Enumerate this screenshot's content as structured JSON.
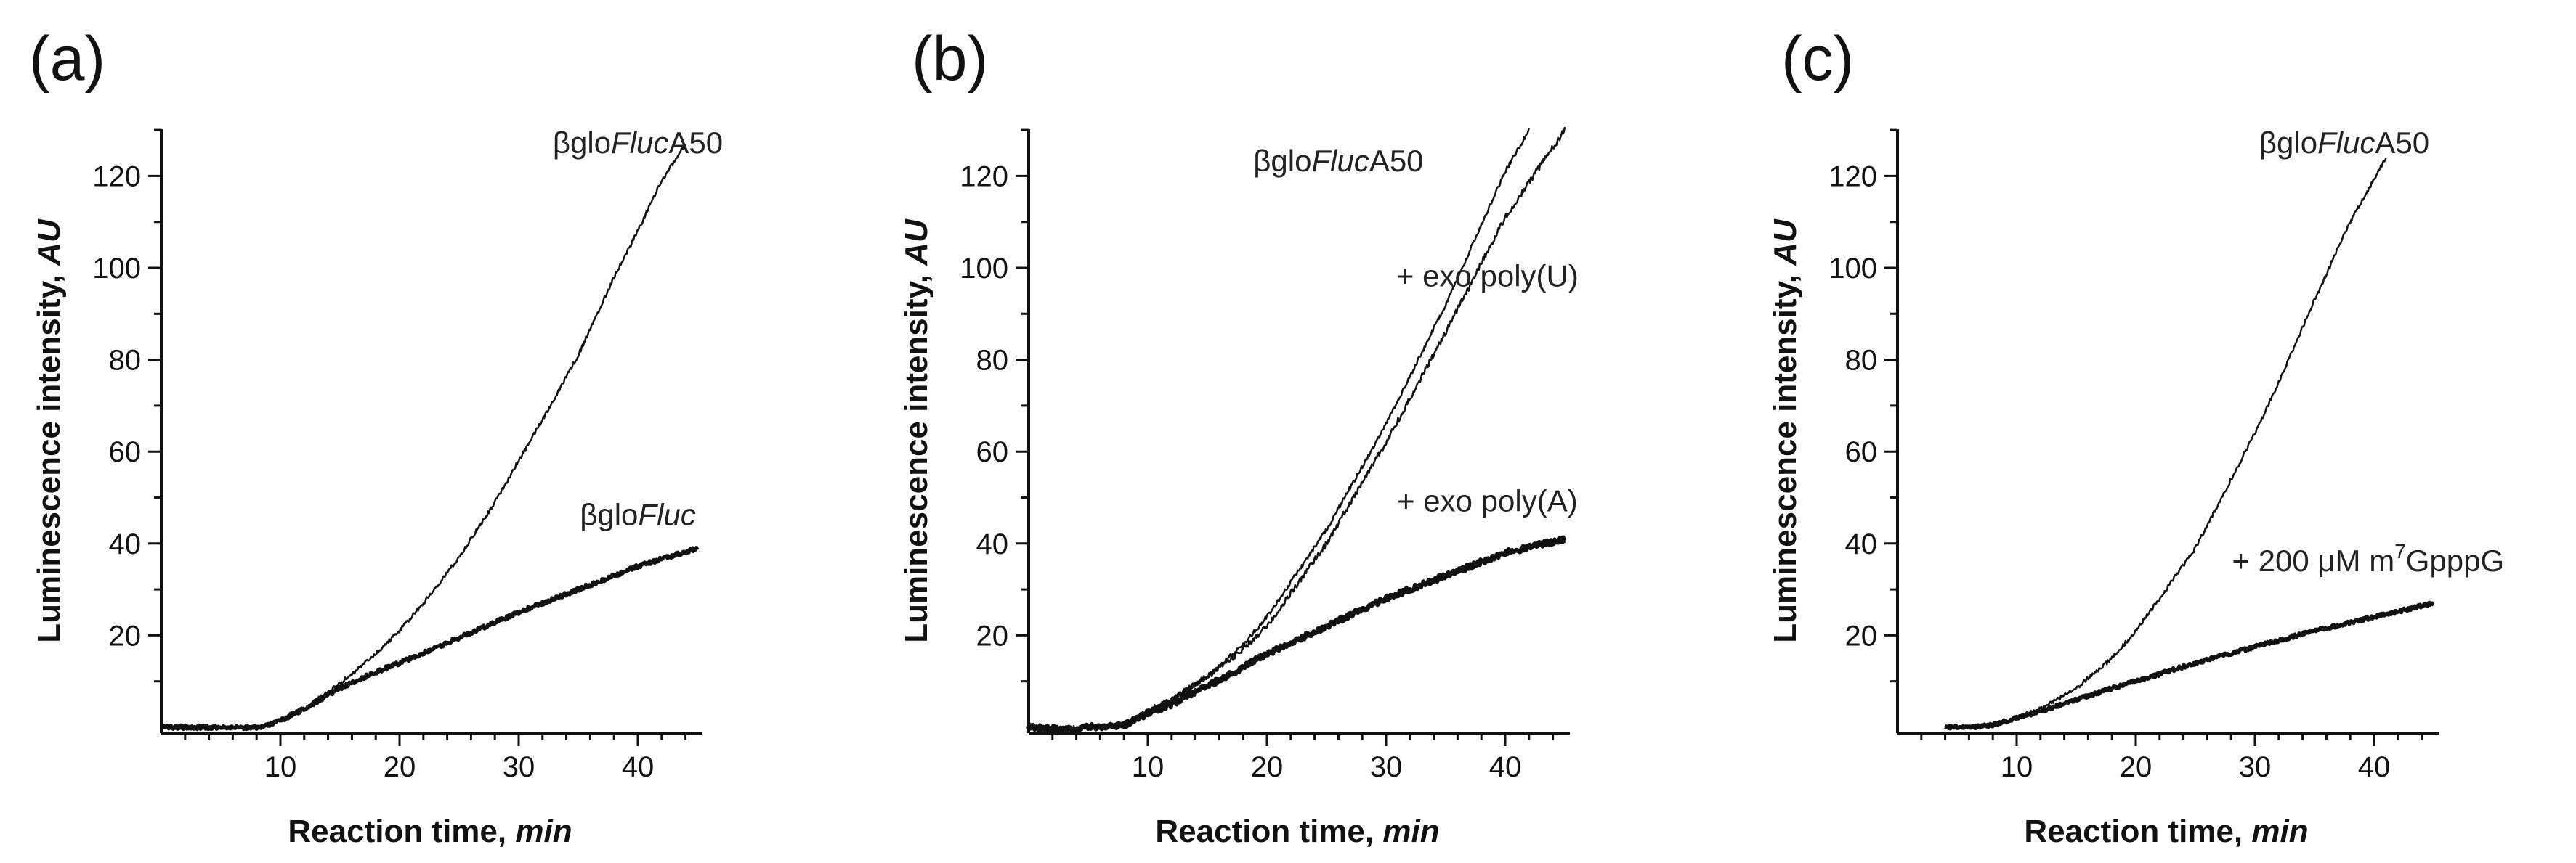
{
  "chart_data": [
    {
      "type": "line",
      "panel_label": "(a)",
      "xlabel_main": "Reaction time, ",
      "xlabel_unit": "min",
      "ylabel_main": "Luminescence intensity, ",
      "ylabel_unit": "AU",
      "xlim": [
        0,
        45
      ],
      "ylim": [
        0,
        130
      ],
      "xticks": [
        10,
        20,
        30,
        40
      ],
      "yticks": [
        20,
        40,
        60,
        80,
        100,
        120
      ],
      "series": [
        {
          "label_prefix": "βglo",
          "label_italic": "Fluc",
          "label_suffix": "A50",
          "label_at": [
            40,
            125
          ],
          "stroke": 2.5,
          "noise": 0.9,
          "x": [
            0,
            5,
            8,
            9,
            10,
            12,
            15,
            18,
            20,
            22,
            25,
            28,
            30,
            32,
            35,
            38,
            40,
            42,
            44
          ],
          "y": [
            0,
            0,
            0,
            0.5,
            1.5,
            4,
            9.5,
            16,
            21,
            27,
            37,
            49,
            58,
            67,
            81,
            98,
            108,
            119,
            127
          ]
        },
        {
          "label_prefix": "βglo",
          "label_italic": "Fluc",
          "label_suffix": "",
          "label_at": [
            40,
            44
          ],
          "stroke": 5,
          "noise": 0.9,
          "x": [
            0,
            5,
            8,
            9,
            10,
            12,
            15,
            18,
            20,
            25,
            30,
            35,
            40,
            45
          ],
          "y": [
            0,
            0,
            0,
            0.5,
            1.5,
            4,
            8.5,
            12,
            14,
            19.5,
            25,
            30,
            35,
            39
          ]
        }
      ]
    },
    {
      "type": "line",
      "panel_label": "(b)",
      "xlabel_main": "Reaction time, ",
      "xlabel_unit": "min",
      "ylabel_main": "Luminescence intensity, ",
      "ylabel_unit": "AU",
      "xlim": [
        0,
        45
      ],
      "ylim": [
        0,
        130
      ],
      "xticks": [
        10,
        20,
        30,
        40
      ],
      "yticks": [
        20,
        40,
        60,
        80,
        100,
        120
      ],
      "series": [
        {
          "label_prefix": "βglo",
          "label_italic": "Fluc",
          "label_suffix": "A50",
          "label_at": [
            26,
            121
          ],
          "stroke": 2.5,
          "noise": 0.9,
          "x": [
            0,
            3,
            5,
            8,
            10,
            12,
            15,
            18,
            20,
            25,
            30,
            35,
            40,
            42
          ],
          "y": [
            0,
            -0.5,
            0,
            0.5,
            3.5,
            6,
            11,
            18,
            24,
            43,
            66,
            92,
            121,
            130
          ]
        },
        {
          "label_prefix": "+ exo poly(U)",
          "label_italic": "",
          "label_suffix": "",
          "label_at": [
            38.5,
            96
          ],
          "stroke": 2.5,
          "noise": 1.3,
          "x": [
            0,
            3,
            5,
            8,
            10,
            12,
            15,
            18,
            20,
            25,
            30,
            35,
            40,
            45
          ],
          "y": [
            0,
            -0.5,
            0,
            0.5,
            3.5,
            6,
            11,
            17,
            22,
            40,
            62,
            86,
            111,
            130
          ]
        },
        {
          "label_prefix": "+ exo poly(A)",
          "label_italic": "",
          "label_suffix": "",
          "label_at": [
            38.5,
            47
          ],
          "stroke": 6,
          "noise": 1.2,
          "x": [
            0,
            3,
            5,
            8,
            10,
            12,
            15,
            18,
            20,
            25,
            30,
            35,
            40,
            45
          ],
          "y": [
            0,
            -0.5,
            0,
            0.5,
            3,
            5,
            9,
            13,
            16,
            22,
            28,
            33,
            38,
            41
          ]
        }
      ]
    },
    {
      "type": "line",
      "panel_label": "(c)",
      "xlabel_main": "Reaction time, ",
      "xlabel_unit": "min",
      "ylabel_main": "Luminescence intensity, ",
      "ylabel_unit": "AU",
      "xlim": [
        0,
        45
      ],
      "ylim": [
        0,
        130
      ],
      "xticks": [
        10,
        20,
        30,
        40
      ],
      "yticks": [
        20,
        40,
        60,
        80,
        100,
        120
      ],
      "series": [
        {
          "label_prefix": "βglo",
          "label_italic": "Fluc",
          "label_suffix": "A50",
          "label_at": [
            37.5,
            125
          ],
          "stroke": 2.5,
          "noise": 0.9,
          "x": [
            4,
            6,
            8,
            10,
            12,
            15,
            18,
            20,
            22,
            25,
            28,
            30,
            32,
            35,
            38,
            41
          ],
          "y": [
            0,
            0,
            0.5,
            2,
            4,
            8.5,
            15,
            21,
            28,
            39,
            54,
            64,
            75,
            93,
            110,
            124
          ]
        },
        {
          "label_prefix": "+ 200 μM m",
          "label_italic": "",
          "label_suffix": "GpppG",
          "label_sup": "7",
          "label_at": [
            39.5,
            34
          ],
          "stroke": 5,
          "noise": 0.8,
          "x": [
            4,
            6,
            8,
            10,
            12,
            15,
            18,
            20,
            25,
            30,
            35,
            40,
            45
          ],
          "y": [
            0,
            0,
            0.5,
            2,
            3.5,
            6,
            8.5,
            10,
            14,
            17.5,
            21,
            24,
            27
          ]
        }
      ]
    }
  ]
}
